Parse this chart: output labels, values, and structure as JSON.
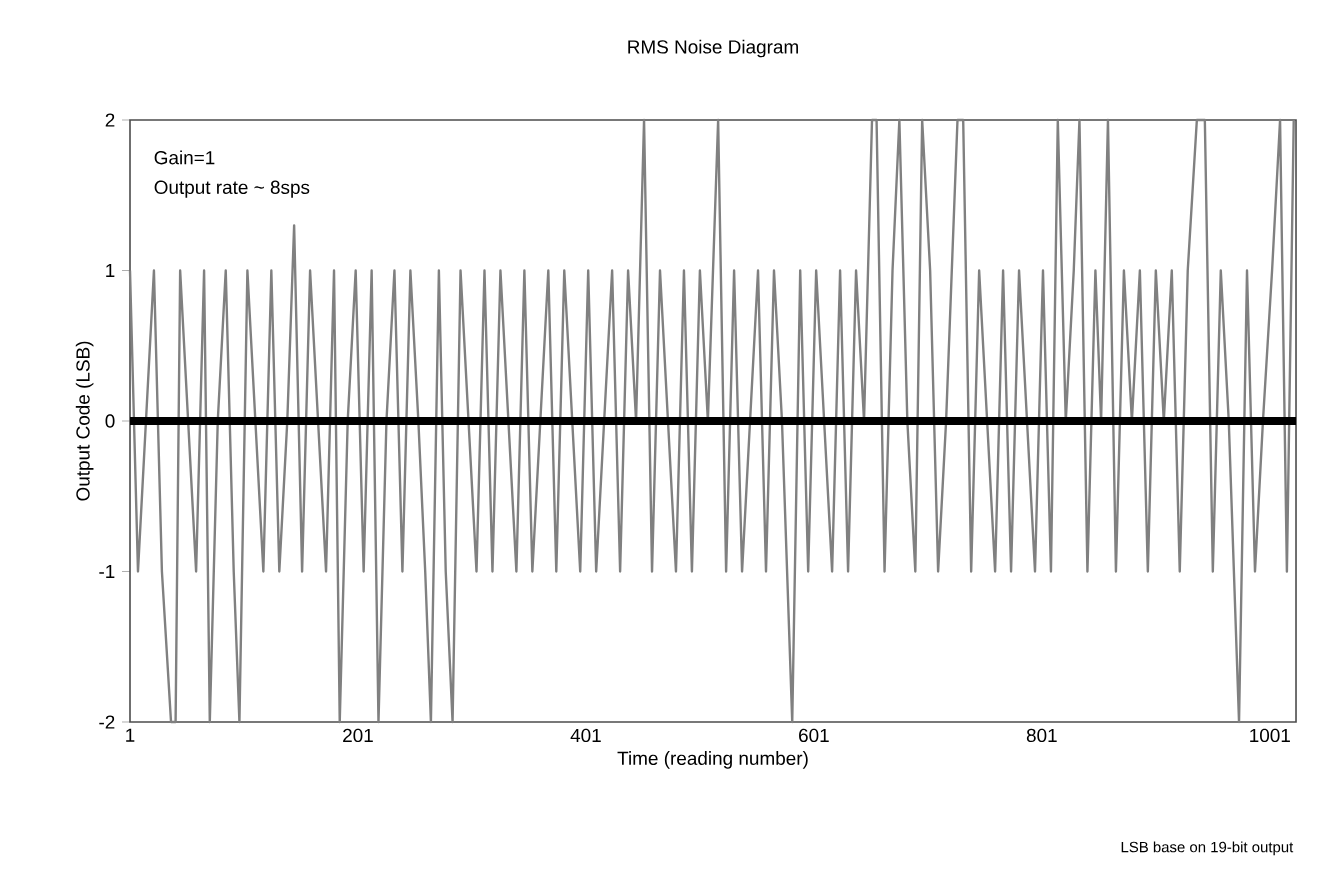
{
  "chart_data": {
    "type": "line",
    "title": "RMS Noise Diagram",
    "xlabel": "Time (reading number)",
    "ylabel": "Output Code (LSB)",
    "annotations": [
      "Gain=1",
      "Output rate ~ 8sps",
      "LSB base on 19-bit output"
    ],
    "xlim": [
      1,
      1024
    ],
    "xticks": [
      1,
      201,
      401,
      601,
      801,
      1001
    ],
    "ylim": [
      -2,
      2
    ],
    "yticks": [
      -2,
      -1,
      0,
      1,
      2
    ],
    "series": [
      {
        "color": "#808080",
        "x": [
          1,
          8,
          15,
          22,
          29,
          37,
          41,
          45,
          52,
          59,
          66,
          71,
          78,
          85,
          92,
          97,
          104,
          111,
          118,
          125,
          132,
          139,
          145,
          152,
          159,
          166,
          173,
          180,
          185,
          192,
          199,
          206,
          213,
          219,
          226,
          233,
          240,
          247,
          254,
          260,
          265,
          272,
          278,
          284,
          291,
          298,
          305,
          312,
          319,
          326,
          333,
          340,
          347,
          354,
          361,
          368,
          375,
          382,
          389,
          396,
          403,
          410,
          417,
          424,
          431,
          438,
          445,
          452,
          459,
          466,
          473,
          480,
          487,
          494,
          501,
          508,
          517,
          524,
          531,
          538,
          545,
          552,
          559,
          566,
          573,
          582,
          589,
          596,
          603,
          610,
          617,
          624,
          631,
          638,
          645,
          652,
          656,
          663,
          670,
          676,
          683,
          690,
          696,
          703,
          710,
          717,
          722,
          727,
          732,
          739,
          746,
          753,
          760,
          767,
          774,
          781,
          788,
          795,
          802,
          809,
          815,
          822,
          829,
          834,
          841,
          848,
          853,
          859,
          866,
          873,
          880,
          887,
          894,
          901,
          908,
          915,
          922,
          929,
          937,
          944,
          951,
          958,
          965,
          974,
          981,
          988,
          995,
          1003,
          1010,
          1016,
          1022
        ],
        "values": [
          1,
          -1,
          0,
          1,
          -1,
          -2,
          -2,
          1,
          0,
          -1,
          1,
          -2,
          0,
          1,
          -1,
          -2,
          1,
          0,
          -1,
          1,
          -1,
          0,
          1.3,
          -1,
          1,
          0,
          -1,
          1,
          -2,
          0,
          1,
          -1,
          1,
          -2,
          0,
          1,
          -1,
          1,
          0,
          -1,
          -2,
          1,
          -1,
          -2,
          1,
          0,
          -1,
          1,
          -1,
          1,
          0,
          -1,
          1,
          -1,
          0,
          1,
          -1,
          1,
          0,
          -1,
          1,
          -1,
          0,
          1,
          -1,
          1,
          0,
          2,
          -1,
          1,
          0,
          -1,
          1,
          -1,
          1,
          0,
          2,
          -1,
          1,
          -1,
          0,
          1,
          -1,
          1,
          0,
          -2,
          1,
          -1,
          1,
          0,
          -1,
          1,
          -1,
          1,
          0,
          2,
          2,
          -1,
          1,
          2,
          0,
          -1,
          2,
          1,
          -1,
          0,
          1,
          2,
          2,
          -1,
          1,
          0,
          -1,
          1,
          -1,
          1,
          0,
          -1,
          1,
          -1,
          2,
          0,
          1,
          2,
          -1,
          1,
          0,
          2,
          -1,
          1,
          0,
          1,
          -1,
          1,
          0,
          1,
          -1,
          1,
          2,
          2,
          -1,
          1,
          0,
          -2,
          1,
          -1,
          0,
          1,
          2,
          -1,
          2
        ]
      }
    ],
    "ref_lines": [
      {
        "axis": "y",
        "value": 0,
        "color": "#000000"
      }
    ],
    "grid": false,
    "marker": "none",
    "line_style": "solid"
  }
}
